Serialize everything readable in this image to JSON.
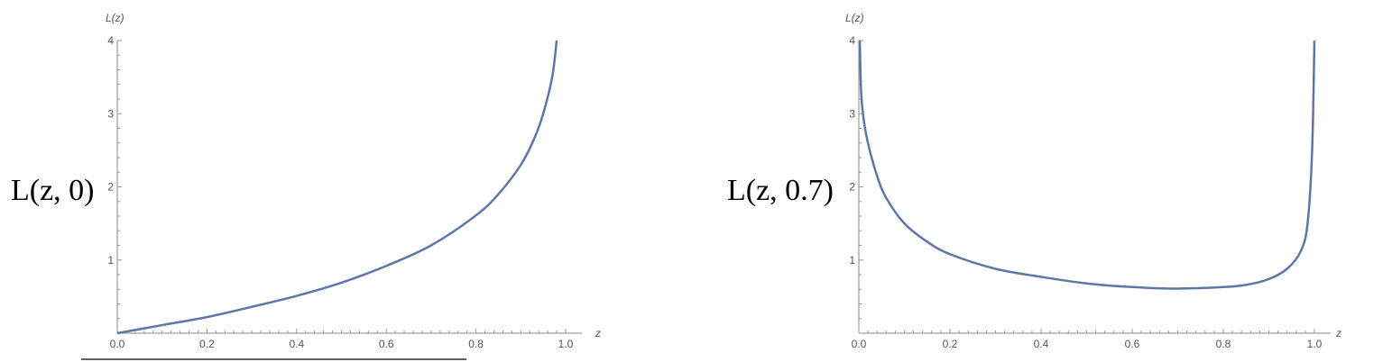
{
  "chart_data": [
    {
      "type": "line",
      "side_label": "L(z, 0)",
      "ylabel": "L(z)",
      "xlabel": "z",
      "xlim": [
        0,
        1
      ],
      "ylim": [
        0,
        4
      ],
      "xticks": [
        "0.0",
        "0.2",
        "0.4",
        "0.6",
        "0.8",
        "1.0"
      ],
      "yticks": [
        "1",
        "2",
        "3",
        "4"
      ],
      "series": [
        {
          "x": [
            0.0,
            0.1,
            0.2,
            0.3,
            0.4,
            0.5,
            0.6,
            0.7,
            0.8,
            0.85,
            0.9,
            0.93,
            0.95,
            0.97,
            0.98
          ],
          "y": [
            0.0,
            0.11,
            0.22,
            0.36,
            0.51,
            0.69,
            0.92,
            1.2,
            1.61,
            1.9,
            2.3,
            2.66,
            3.0,
            3.5,
            4.0
          ]
        }
      ]
    },
    {
      "type": "line",
      "side_label": "L(z, 0.7)",
      "ylabel": "L(z)",
      "xlabel": "z",
      "xlim": [
        0,
        1
      ],
      "ylim": [
        0,
        4
      ],
      "xticks": [
        "0.0",
        "0.2",
        "0.4",
        "0.6",
        "0.8",
        "1.0"
      ],
      "yticks": [
        "1",
        "2",
        "3",
        "4"
      ],
      "series": [
        {
          "x": [
            0.002,
            0.005,
            0.01,
            0.02,
            0.04,
            0.06,
            0.1,
            0.15,
            0.2,
            0.3,
            0.4,
            0.5,
            0.6,
            0.7,
            0.8,
            0.85,
            0.9,
            0.94,
            0.97,
            0.985,
            0.995,
            1.0
          ],
          "y": [
            4.0,
            3.3,
            2.95,
            2.6,
            2.15,
            1.85,
            1.5,
            1.25,
            1.08,
            0.88,
            0.77,
            0.68,
            0.63,
            0.61,
            0.63,
            0.66,
            0.74,
            0.88,
            1.12,
            1.5,
            2.5,
            4.0
          ]
        }
      ]
    }
  ]
}
